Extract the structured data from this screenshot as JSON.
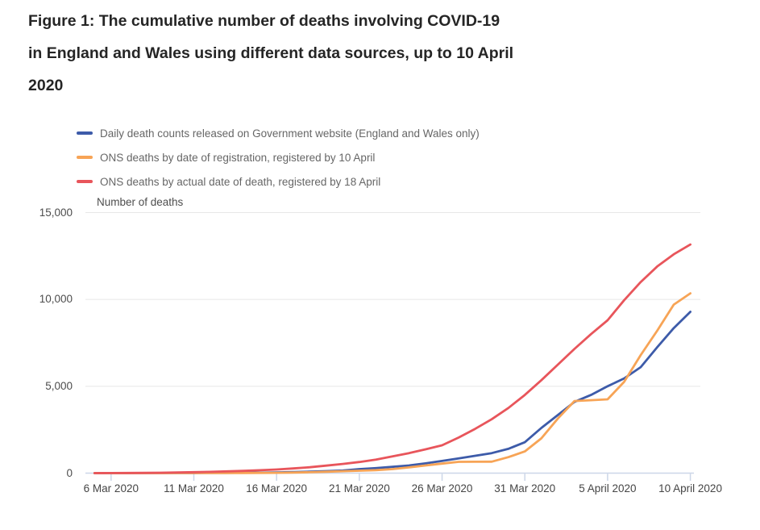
{
  "title": {
    "lines": [
      "Figure 1: The cumulative number of deaths involving COVID-19",
      "in England and Wales using different data sources, up to 10 April",
      "2020"
    ]
  },
  "chart_data": {
    "type": "line",
    "ylabel": "Number of deaths",
    "ylim": [
      0,
      15000
    ],
    "grid": "horizontal",
    "legend_position": "top-left",
    "x_dates": [
      "5 Mar",
      "6 Mar",
      "7 Mar",
      "8 Mar",
      "9 Mar",
      "10 Mar",
      "11 Mar",
      "12 Mar",
      "13 Mar",
      "14 Mar",
      "15 Mar",
      "16 Mar",
      "17 Mar",
      "18 Mar",
      "19 Mar",
      "20 Mar",
      "21 Mar",
      "22 Mar",
      "23 Mar",
      "24 Mar",
      "25 Mar",
      "26 Mar",
      "27 Mar",
      "28 Mar",
      "29 Mar",
      "30 Mar",
      "31 Mar",
      "1 Apr",
      "2 Apr",
      "3 Apr",
      "4 Apr",
      "5 Apr",
      "6 Apr",
      "7 Apr",
      "8 Apr",
      "9 Apr",
      "10 Apr"
    ],
    "yticks": [
      {
        "value": 0,
        "label": "0"
      },
      {
        "value": 5000,
        "label": "5,000"
      },
      {
        "value": 10000,
        "label": "10,000"
      },
      {
        "value": 15000,
        "label": "15,000"
      }
    ],
    "xticks": [
      {
        "index": 1,
        "label": "6 Mar 2020"
      },
      {
        "index": 6,
        "label": "11 Mar 2020"
      },
      {
        "index": 11,
        "label": "16 Mar 2020"
      },
      {
        "index": 16,
        "label": "21 Mar 2020"
      },
      {
        "index": 21,
        "label": "26 Mar 2020"
      },
      {
        "index": 26,
        "label": "31 Mar 2020"
      },
      {
        "index": 31,
        "label": "5 April 2020"
      },
      {
        "index": 36,
        "label": "10 April 2020"
      }
    ],
    "series": [
      {
        "name": "Daily death counts released on Government website (England and Wales only)",
        "color": "#3d5ba9",
        "values": [
          0,
          1,
          2,
          3,
          5,
          7,
          9,
          12,
          16,
          22,
          30,
          40,
          60,
          85,
          115,
          150,
          230,
          290,
          360,
          440,
          560,
          700,
          850,
          1000,
          1150,
          1400,
          1780,
          2600,
          3350,
          4100,
          4500,
          5000,
          5450,
          6100,
          7250,
          8350,
          9290
        ]
      },
      {
        "name": "ONS deaths by date of registration, registered by 10 April",
        "color": "#f7a456",
        "values": [
          0,
          0,
          1,
          1,
          2,
          3,
          4,
          6,
          8,
          10,
          13,
          20,
          32,
          50,
          78,
          111,
          140,
          170,
          230,
          330,
          440,
          550,
          650,
          655,
          660,
          920,
          1250,
          2000,
          3150,
          4150,
          4200,
          4250,
          5250,
          6800,
          8200,
          9700,
          10350
        ]
      },
      {
        "name": "ONS deaths by actual date of death, registered by 18 April",
        "color": "#e8555b",
        "values": [
          0,
          5,
          10,
          15,
          25,
          40,
          55,
          75,
          100,
          130,
          165,
          210,
          270,
          340,
          430,
          530,
          640,
          780,
          960,
          1150,
          1370,
          1600,
          2050,
          2550,
          3100,
          3750,
          4500,
          5350,
          6250,
          7150,
          8000,
          8800,
          9950,
          11000,
          11900,
          12600,
          13160
        ]
      }
    ]
  }
}
